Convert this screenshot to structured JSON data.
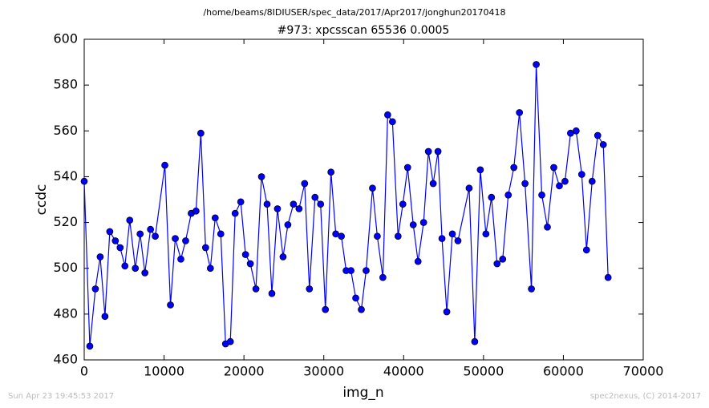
{
  "chart_data": {
    "type": "line",
    "header": "/home/beams/8IDIUSER/spec_data/2017/Apr2017/jonghun20170418",
    "title": "#973: xpcsscan 65536 0.0005",
    "xlabel": "img_n",
    "ylabel": "ccdc",
    "footer_left": "Sun Apr 23 19:45:53 2017",
    "footer_right": "spec2nexus, (C) 2014-2017",
    "color": "#0000ff",
    "marker": "circle",
    "x": [
      0,
      700,
      1400,
      2000,
      2600,
      3200,
      3900,
      4500,
      5100,
      5700,
      6400,
      7000,
      7600,
      8300,
      8900,
      10100,
      10800,
      11400,
      12100,
      12700,
      13400,
      14000,
      14600,
      15200,
      15800,
      16400,
      17100,
      17700,
      18300,
      18900,
      19600,
      20200,
      20800,
      21500,
      22200,
      22900,
      23500,
      24200,
      24900,
      25500,
      26200,
      26900,
      27600,
      28200,
      28900,
      29600,
      30200,
      30900,
      31500,
      32200,
      32800,
      33400,
      34000,
      34700,
      35300,
      36100,
      36700,
      37400,
      38000,
      38600,
      39300,
      39900,
      40500,
      41200,
      41800,
      42500,
      43100,
      43700,
      44300,
      44800,
      45400,
      46100,
      46800,
      48200,
      48900,
      49600,
      50300,
      51000,
      51700,
      52400,
      53100,
      53800,
      54500,
      55200,
      56000,
      56600,
      57300,
      58000,
      58800,
      59500,
      60200,
      60900,
      61600,
      62300,
      62900,
      63600,
      64300,
      65000,
      65600
    ],
    "values": [
      538,
      466,
      491,
      505,
      479,
      516,
      512,
      509,
      501,
      521,
      500,
      515,
      498,
      517,
      514,
      545,
      484,
      513,
      504,
      512,
      524,
      525,
      559,
      509,
      500,
      522,
      515,
      467,
      468,
      524,
      529,
      506,
      502,
      491,
      540,
      528,
      489,
      526,
      505,
      519,
      528,
      526,
      537,
      491,
      531,
      528,
      482,
      542,
      515,
      514,
      499,
      499,
      487,
      482,
      499,
      535,
      514,
      496,
      567,
      564,
      514,
      528,
      544,
      519,
      503,
      520,
      551,
      537,
      551,
      513,
      481,
      515,
      512,
      535,
      468,
      543,
      515,
      531,
      502,
      504,
      532,
      544,
      568,
      537,
      491,
      589,
      532,
      518,
      544,
      536,
      538,
      559,
      560,
      541,
      508,
      538,
      558,
      554,
      496
    ],
    "xlim": [
      0,
      70000
    ],
    "xticks": [
      0,
      10000,
      20000,
      30000,
      40000,
      50000,
      60000,
      70000
    ],
    "ylim": [
      460,
      600
    ],
    "yticks": [
      460,
      480,
      500,
      520,
      540,
      560,
      580,
      600
    ]
  }
}
